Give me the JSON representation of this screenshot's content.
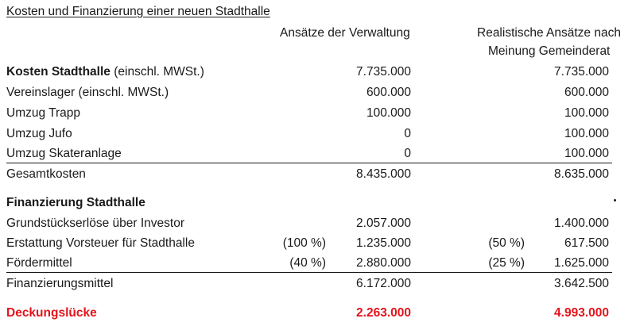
{
  "title": "Kosten und Finanzierung einer neuen Stadthalle",
  "headers": {
    "verwaltung": "Ansätze der Verwaltung",
    "gemeinderat_line1": "Realistische Ansätze nach",
    "gemeinderat_line2": "Meinung Gemeinderat"
  },
  "kosten": {
    "heading_bold": "Kosten Stadthalle",
    "heading_rest": " (einschl. MWSt.)",
    "heading_v": "7.735.000",
    "heading_g": "7.735.000",
    "rows": [
      {
        "label": "Vereinslager (einschl. MWSt.)",
        "v": "600.000",
        "g": "600.000"
      },
      {
        "label": "Umzug Trapp",
        "v": "100.000",
        "g": "100.000"
      },
      {
        "label": "Umzug Jufo",
        "v": "0",
        "g": "100.000"
      },
      {
        "label": "Umzug Skateranlage",
        "v": "0",
        "g": "100.000"
      }
    ],
    "total_label": "Gesamtkosten",
    "total_v": "8.435.000",
    "total_g": "8.635.000"
  },
  "finanzierung": {
    "heading": "Finanzierung Stadthalle",
    "rows": [
      {
        "label": "Grundstückserlöse über Investor",
        "pv": "",
        "v": "2.057.000",
        "pg": "",
        "g": "1.400.000"
      },
      {
        "label": "Erstattung Vorsteuer für Stadthalle",
        "pv": "(100 %)",
        "v": "1.235.000",
        "pg": "(50 %)",
        "g": "617.500"
      },
      {
        "label": "Fördermittel",
        "pv": "(40 %)",
        "v": "2.880.000",
        "pg": "(25 %)",
        "g": "1.625.000"
      }
    ],
    "total_label": "Finanzierungsmittel",
    "total_v": "6.172.000",
    "total_g": "3.642.500"
  },
  "deckung": {
    "label": "Deckungslücke",
    "v": "2.263.000",
    "g": "4.993.000"
  },
  "colors": {
    "accent_red": "#e3141b",
    "text": "#1a1a1a"
  }
}
